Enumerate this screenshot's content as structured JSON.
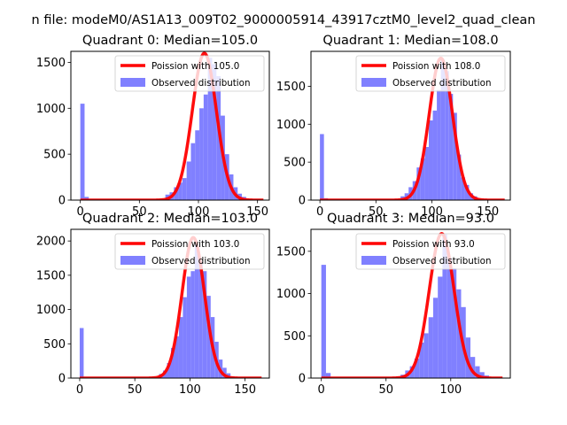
{
  "figure": {
    "suptitle": "n file: modeM0/AS1A13_009T02_9000005914_43917cztM0_level2_quad_clean"
  },
  "colors": {
    "histogram": "#8080ff",
    "poisson": "#ff0000",
    "axes": "#000000",
    "background": "#ffffff"
  },
  "chart_data": [
    {
      "type": "bar",
      "title": "Quadrant 0: Median=105.0",
      "xlabel": "",
      "ylabel": "",
      "xlim": [
        -8,
        160
      ],
      "ylim": [
        0,
        1620
      ],
      "xticks": [
        0,
        50,
        100,
        150
      ],
      "yticks": [
        0,
        500,
        1000,
        1500
      ],
      "grid": false,
      "legend_position": "upper right",
      "series": [
        {
          "name": "Poission with 105.0",
          "type": "line",
          "mean": 105.0,
          "peak": 1600,
          "x_range": [
            0,
            155
          ]
        },
        {
          "name": "Observed distribution",
          "type": "histogram",
          "bin_width": 3.6,
          "bins": [
            [
              0,
              1050
            ],
            [
              3.6,
              35
            ],
            [
              72,
              60
            ],
            [
              75.6,
              85
            ],
            [
              79.2,
              140
            ],
            [
              82.8,
              190
            ],
            [
              86.4,
              240
            ],
            [
              90,
              420
            ],
            [
              93.6,
              620
            ],
            [
              97.2,
              760
            ],
            [
              100.8,
              1000
            ],
            [
              104.4,
              1150
            ],
            [
              108,
              1550
            ],
            [
              111.6,
              1480
            ],
            [
              115.2,
              1350
            ],
            [
              118.8,
              920
            ],
            [
              122.4,
              500
            ],
            [
              126,
              280
            ],
            [
              129.6,
              140
            ],
            [
              133.2,
              70
            ],
            [
              136.8,
              35
            ],
            [
              140.4,
              15
            ]
          ]
        }
      ]
    },
    {
      "type": "bar",
      "title": "Quadrant 1: Median=108.0",
      "xlabel": "",
      "ylabel": "",
      "xlim": [
        -8,
        170
      ],
      "ylim": [
        0,
        1960
      ],
      "xticks": [
        0,
        50,
        100,
        150
      ],
      "yticks": [
        0,
        500,
        1000,
        1500
      ],
      "grid": false,
      "legend_position": "upper right",
      "series": [
        {
          "name": "Poission with 108.0",
          "type": "line",
          "mean": 108.0,
          "peak": 1870,
          "x_range": [
            0,
            165
          ]
        },
        {
          "name": "Observed distribution",
          "type": "histogram",
          "bin_width": 3.6,
          "bins": [
            [
              0,
              870
            ],
            [
              3.6,
              25
            ],
            [
              72,
              50
            ],
            [
              75.6,
              90
            ],
            [
              79.2,
              170
            ],
            [
              82.8,
              250
            ],
            [
              86.4,
              430
            ],
            [
              90,
              550
            ],
            [
              93.6,
              700
            ],
            [
              97.2,
              1050
            ],
            [
              100.8,
              1180
            ],
            [
              104.4,
              1450
            ],
            [
              108,
              1850
            ],
            [
              111.6,
              1700
            ],
            [
              115.2,
              1400
            ],
            [
              118.8,
              1150
            ],
            [
              122.4,
              600
            ],
            [
              126,
              300
            ],
            [
              129.6,
              200
            ],
            [
              133.2,
              90
            ],
            [
              136.8,
              50
            ],
            [
              140.4,
              20
            ]
          ]
        }
      ]
    },
    {
      "type": "bar",
      "title": "Quadrant 2: Median=103.0",
      "xlabel": "",
      "ylabel": "",
      "xlim": [
        -8,
        172
      ],
      "ylim": [
        0,
        2170
      ],
      "xticks": [
        0,
        50,
        100,
        150
      ],
      "yticks": [
        0,
        500,
        1000,
        1500,
        2000
      ],
      "grid": false,
      "legend_position": "upper right",
      "series": [
        {
          "name": "Poission with 103.0",
          "type": "line",
          "mean": 103.0,
          "peak": 2050,
          "x_range": [
            0,
            165
          ]
        },
        {
          "name": "Observed distribution",
          "type": "histogram",
          "bin_width": 3.6,
          "bins": [
            [
              0,
              730
            ],
            [
              72,
              60
            ],
            [
              75.6,
              110
            ],
            [
              79.2,
              220
            ],
            [
              82.8,
              440
            ],
            [
              86.4,
              610
            ],
            [
              90,
              890
            ],
            [
              93.6,
              1180
            ],
            [
              97.2,
              1480
            ],
            [
              100.8,
              1560
            ],
            [
              104.4,
              1950
            ],
            [
              108,
              1700
            ],
            [
              111.6,
              1560
            ],
            [
              115.2,
              1200
            ],
            [
              118.8,
              890
            ],
            [
              122.4,
              530
            ],
            [
              126,
              270
            ],
            [
              129.6,
              150
            ],
            [
              133.2,
              70
            ],
            [
              136.8,
              25
            ]
          ]
        }
      ]
    },
    {
      "type": "bar",
      "title": "Quadrant 3: Median=93.0",
      "xlabel": "",
      "ylabel": "",
      "xlim": [
        -8,
        146
      ],
      "ylim": [
        0,
        1760
      ],
      "xticks": [
        0,
        50,
        100
      ],
      "yticks": [
        0,
        500,
        1000,
        1500
      ],
      "grid": false,
      "legend_position": "upper right",
      "series": [
        {
          "name": "Poission with 93.0",
          "type": "line",
          "mean": 93.0,
          "peak": 1710,
          "x_range": [
            0,
            140
          ]
        },
        {
          "name": "Observed distribution",
          "type": "histogram",
          "bin_width": 3.6,
          "bins": [
            [
              0,
              1340
            ],
            [
              3.6,
              60
            ],
            [
              57.6,
              20
            ],
            [
              61.2,
              40
            ],
            [
              64.8,
              90
            ],
            [
              68.4,
              140
            ],
            [
              72,
              230
            ],
            [
              75.6,
              420
            ],
            [
              79.2,
              530
            ],
            [
              82.8,
              720
            ],
            [
              86.4,
              950
            ],
            [
              90,
              1200
            ],
            [
              93.6,
              1700
            ],
            [
              97.2,
              1420
            ],
            [
              100.8,
              1300
            ],
            [
              104.4,
              1050
            ],
            [
              108,
              840
            ],
            [
              111.6,
              480
            ],
            [
              115.2,
              250
            ],
            [
              118.8,
              140
            ],
            [
              122.4,
              70
            ],
            [
              126,
              30
            ]
          ]
        }
      ]
    }
  ]
}
